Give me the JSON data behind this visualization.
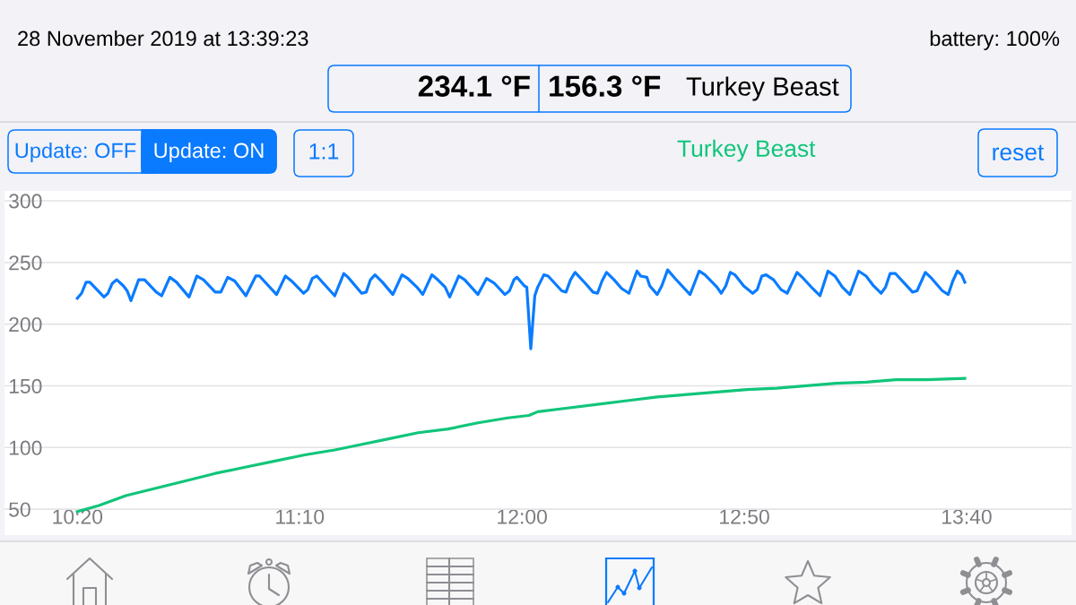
{
  "chart_data": {
    "type": "line",
    "title": "28 November 2019 at 13:39:23",
    "annotations": [
      "battery: 100%",
      "234.1 °F",
      "156.3 °F",
      "Turkey Beast",
      "Update: OFF",
      "Update: ON",
      "1:1",
      "reset"
    ],
    "xlim": [
      10.06,
      14.06
    ],
    "xticks": [
      {
        "value": 10.3333,
        "label": "10:20"
      },
      {
        "value": 11.1667,
        "label": "11:10"
      },
      {
        "value": 12,
        "label": "12:00"
      },
      {
        "value": 12.8333,
        "label": "12:50"
      },
      {
        "value": 13.6667,
        "label": "13:40"
      }
    ],
    "ylim": [
      29,
      308
    ],
    "yticks": [
      50,
      100,
      150,
      200,
      250,
      300
    ],
    "grid": "y",
    "legend": "top",
    "series": [
      {
        "color": "#0a7cff",
        "x": [
          10.333,
          10.349,
          10.366,
          10.38,
          10.433,
          10.448,
          10.464,
          10.481,
          10.506,
          10.52,
          10.534,
          10.563,
          10.585,
          10.629,
          10.649,
          10.68,
          10.705,
          10.752,
          10.781,
          10.806,
          10.85,
          10.871,
          10.897,
          10.923,
          10.965,
          11.002,
          11.016,
          11.08,
          11.113,
          11.136,
          11.181,
          11.197,
          11.214,
          11.231,
          11.298,
          11.332,
          11.348,
          11.399,
          11.416,
          11.432,
          11.449,
          11.477,
          11.516,
          11.55,
          11.572,
          11.606,
          11.628,
          11.662,
          11.684,
          11.712,
          11.729,
          11.763,
          11.785,
          11.835,
          11.867,
          11.897,
          11.936,
          11.953,
          11.97,
          11.981,
          12.009,
          12.018,
          12.033,
          12.048,
          12.059,
          12.082,
          12.098,
          12.149,
          12.165,
          12.182,
          12.199,
          12.238,
          12.266,
          12.283,
          12.3,
          12.317,
          12.345,
          12.373,
          12.401,
          12.431,
          12.445,
          12.468,
          12.479,
          12.507,
          12.524,
          12.546,
          12.574,
          12.63,
          12.664,
          12.686,
          12.731,
          12.747,
          12.764,
          12.781,
          12.798,
          12.831,
          12.865,
          12.882,
          12.899,
          12.915,
          12.943,
          12.971,
          12.994,
          13.031,
          13.055,
          13.089,
          13.117,
          13.147,
          13.173,
          13.201,
          13.229,
          13.262,
          13.29,
          13.318,
          13.346,
          13.363,
          13.38,
          13.4,
          13.43,
          13.464,
          13.481,
          13.512,
          13.536,
          13.576,
          13.598,
          13.615,
          13.632,
          13.648,
          13.66
        ],
        "values": [
          221,
          225,
          234,
          234,
          222,
          225,
          233,
          236,
          231,
          227,
          219,
          236,
          236,
          226,
          223,
          238,
          234,
          222,
          239,
          236,
          226,
          226,
          238,
          235,
          223,
          239,
          239,
          224,
          239,
          235,
          225,
          228,
          237,
          239,
          223,
          241,
          238,
          225,
          226,
          236,
          240,
          234,
          224,
          240,
          237,
          230,
          224,
          240,
          236,
          230,
          222,
          239,
          236,
          224,
          237,
          233,
          224,
          227,
          236,
          238,
          231,
          230,
          180,
          223,
          230,
          240,
          239,
          227,
          226,
          236,
          242,
          233,
          226,
          225,
          235,
          242,
          236,
          229,
          225,
          243,
          239,
          238,
          231,
          224,
          231,
          244,
          237,
          224,
          243,
          240,
          230,
          225,
          231,
          242,
          240,
          231,
          225,
          228,
          239,
          240,
          236,
          228,
          225,
          242,
          237,
          229,
          223,
          243,
          239,
          230,
          224,
          243,
          239,
          231,
          225,
          230,
          241,
          241,
          234,
          226,
          227,
          242,
          237,
          227,
          224,
          235,
          243,
          240,
          234
        ]
      },
      {
        "name": "Turkey Beast",
        "color": "#10c57a",
        "x": [
          10.333,
          10.414,
          10.515,
          10.627,
          10.739,
          10.85,
          10.962,
          11.074,
          11.186,
          11.298,
          11.388,
          11.5,
          11.611,
          11.723,
          11.835,
          11.947,
          12.026,
          12.059,
          12.171,
          12.283,
          12.395,
          12.507,
          12.619,
          12.731,
          12.843,
          12.955,
          13.066,
          13.178,
          13.29,
          13.402,
          13.514,
          13.66
        ],
        "values": [
          48,
          53,
          61,
          67,
          73,
          79,
          84,
          89,
          94,
          98,
          102,
          107,
          112,
          115,
          120,
          124,
          126,
          129,
          132,
          135,
          138,
          141,
          143,
          145,
          147,
          148,
          150,
          152,
          153,
          155,
          155,
          156
        ]
      }
    ]
  }
}
